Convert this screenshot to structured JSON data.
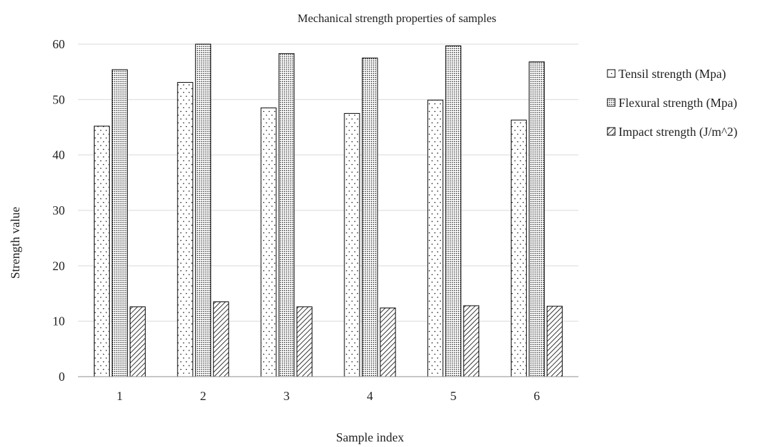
{
  "chart_data": {
    "type": "bar",
    "title": "Mechanical strength properties of samples",
    "xlabel": "Sample index",
    "ylabel": "Strength value",
    "categories": [
      "1",
      "2",
      "3",
      "4",
      "5",
      "6"
    ],
    "ylim": [
      0,
      60
    ],
    "yticks": [
      0,
      10,
      20,
      30,
      40,
      50,
      60
    ],
    "grid": true,
    "legend_position": "right",
    "series": [
      {
        "name": "Tensil strength (Mpa)",
        "pattern": "sparse-dots",
        "values": [
          45.2,
          53.1,
          48.5,
          47.5,
          49.9,
          46.3
        ]
      },
      {
        "name": "Flexural strength (Mpa)",
        "pattern": "dense-dots",
        "values": [
          55.4,
          60.0,
          58.3,
          57.5,
          59.7,
          56.8
        ]
      },
      {
        "name": "Impact strength (J/m^2)",
        "pattern": "diagonal-hatch",
        "values": [
          12.6,
          13.5,
          12.6,
          12.4,
          12.8,
          12.7
        ]
      }
    ]
  }
}
